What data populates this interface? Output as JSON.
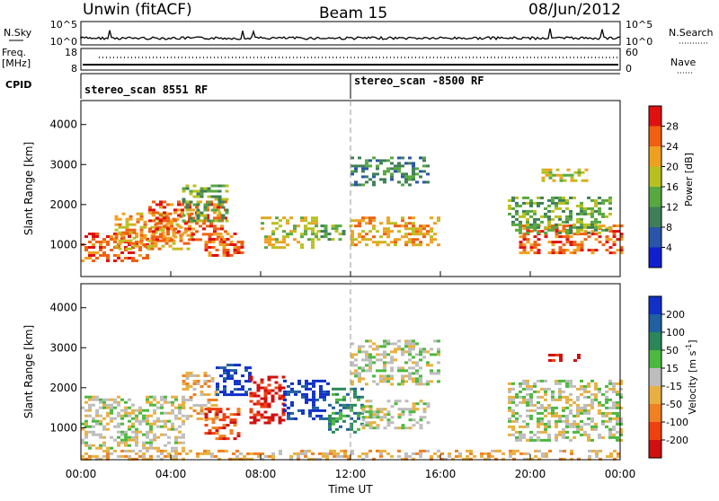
{
  "header": {
    "site": "Unwin (fitACF)",
    "beam": "Beam 15",
    "date": "08/Jun/2012"
  },
  "noise_panel": {
    "left_label": "N.Sky",
    "right_label": "N.Search",
    "left_ticks": [
      "10^5",
      "10^0"
    ],
    "right_ticks": [
      "10^5",
      "10^0"
    ]
  },
  "freq_panel": {
    "label_line1": "Freq.",
    "label_line2": "[MHz]",
    "right_label": "Nave",
    "left_ticks": [
      "18",
      "8"
    ],
    "right_ticks": [
      "60",
      "0"
    ]
  },
  "cpid_panel": {
    "label": "CPID",
    "modes": [
      {
        "name": "stereo_scan 8551 RF",
        "start_hour": 0
      },
      {
        "name": "stereo_scan -8500 RF",
        "start_hour": 12.0
      }
    ]
  },
  "x_axis": {
    "label": "Time UT",
    "ticks": [
      "00:00",
      "04:00",
      "08:00",
      "12:00",
      "16:00",
      "20:00",
      "00:00"
    ],
    "tick_hours": [
      0,
      4,
      8,
      12,
      16,
      20,
      24
    ],
    "range_hours": [
      0,
      24
    ]
  },
  "colorbars": {
    "power": {
      "label": "Power [dB]",
      "ticks": [
        "4",
        "8",
        "12",
        "16",
        "20",
        "24",
        "28"
      ],
      "colors": [
        "#1020d0",
        "#2a55a8",
        "#3f7f58",
        "#58a840",
        "#b8c020",
        "#f0a020",
        "#f06010",
        "#e01010"
      ]
    },
    "velocity": {
      "label_main": "Velocity [m s",
      "label_exp": "-1",
      "label_close": "]",
      "ticks": [
        "200",
        "100",
        "50",
        "15",
        "-15",
        "-50",
        "-100",
        "-200"
      ],
      "colors": [
        "#1030c8",
        "#2060a0",
        "#2a8858",
        "#4cb840",
        "#bdbdbd",
        "#e8b040",
        "#f08020",
        "#f04010",
        "#d01010"
      ]
    }
  },
  "chart_data": [
    {
      "type": "heatmap",
      "panel": "power",
      "ylabel": "Slant Range [km]",
      "y_ticks": [
        "1000",
        "2000",
        "3000",
        "4000"
      ],
      "y_tick_values": [
        1000,
        2000,
        3000,
        4000
      ],
      "ylim": [
        200,
        4600
      ],
      "xlim": [
        0,
        24
      ],
      "regions": [
        {
          "t0": 0.0,
          "t1": 3.0,
          "r0": 600,
          "r1": 1300,
          "level": 6
        },
        {
          "t0": 1.5,
          "t1": 5.0,
          "r0": 900,
          "r1": 1800,
          "level": 5
        },
        {
          "t0": 3.0,
          "t1": 6.5,
          "r0": 1100,
          "r1": 2100,
          "level": 6
        },
        {
          "t0": 4.5,
          "t1": 6.5,
          "r0": 1600,
          "r1": 2500,
          "level": 3
        },
        {
          "t0": 5.5,
          "t1": 7.2,
          "r0": 700,
          "r1": 1300,
          "level": 6
        },
        {
          "t0": 8.0,
          "t1": 10.5,
          "r0": 900,
          "r1": 1700,
          "level": 4
        },
        {
          "t0": 10.5,
          "t1": 12.0,
          "r0": 1100,
          "r1": 1500,
          "level": 3
        },
        {
          "t0": 12.0,
          "t1": 16.0,
          "r0": 1000,
          "r1": 1700,
          "level": 5
        },
        {
          "t0": 12.0,
          "t1": 15.5,
          "r0": 2500,
          "r1": 3200,
          "level": 2
        },
        {
          "t0": 19.5,
          "t1": 24.0,
          "r0": 800,
          "r1": 1500,
          "level": 6
        },
        {
          "t0": 19.0,
          "t1": 23.5,
          "r0": 1300,
          "r1": 2200,
          "level": 3
        },
        {
          "t0": 20.5,
          "t1": 22.5,
          "r0": 2600,
          "r1": 2900,
          "level": 4
        }
      ]
    },
    {
      "type": "heatmap",
      "panel": "velocity",
      "ylabel": "Slant Range [km]",
      "y_ticks": [
        "1000",
        "2000",
        "3000",
        "4000"
      ],
      "y_tick_values": [
        1000,
        2000,
        3000,
        4000
      ],
      "ylim": [
        200,
        4600
      ],
      "xlim": [
        0,
        24
      ],
      "regions": [
        {
          "t0": 0.0,
          "t1": 4.5,
          "r0": 500,
          "r1": 1800,
          "level": 4
        },
        {
          "t0": 4.5,
          "t1": 6.0,
          "r0": 1200,
          "r1": 2400,
          "level": 5
        },
        {
          "t0": 5.5,
          "t1": 7.0,
          "r0": 700,
          "r1": 1500,
          "level": 7
        },
        {
          "t0": 6.0,
          "t1": 7.5,
          "r0": 1800,
          "r1": 2600,
          "level": 0
        },
        {
          "t0": 7.5,
          "t1": 9.0,
          "r0": 1100,
          "r1": 2300,
          "level": 8
        },
        {
          "t0": 9.0,
          "t1": 11.0,
          "r0": 1200,
          "r1": 2200,
          "level": 0
        },
        {
          "t0": 11.0,
          "t1": 12.5,
          "r0": 900,
          "r1": 2000,
          "level": 2
        },
        {
          "t0": 12.5,
          "t1": 15.5,
          "r0": 1000,
          "r1": 1700,
          "level": 4
        },
        {
          "t0": 12.0,
          "t1": 16.0,
          "r0": 2100,
          "r1": 3200,
          "level": 4
        },
        {
          "t0": 19.0,
          "t1": 24.0,
          "r0": 700,
          "r1": 2200,
          "level": 4
        },
        {
          "t0": 20.8,
          "t1": 22.3,
          "r0": 2650,
          "r1": 2850,
          "level": 8
        },
        {
          "t0": 0.0,
          "t1": 24.0,
          "r0": 230,
          "r1": 450,
          "level": 5
        }
      ]
    }
  ]
}
